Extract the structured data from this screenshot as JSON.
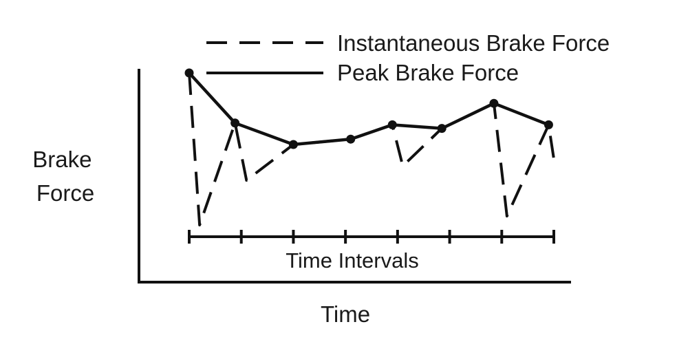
{
  "chart_data": {
    "type": "line",
    "title": "",
    "xlabel": "Time",
    "ylabel_lines": [
      "Brake",
      "Force"
    ],
    "interval_label": "Time Intervals",
    "interval_ticks": 8,
    "xlim": [
      0,
      7
    ],
    "ylim": [
      0,
      100
    ],
    "grid": false,
    "legend": {
      "placement": "top-right",
      "entries": [
        {
          "name": "Instantaneous Brake Force",
          "style": "dashed"
        },
        {
          "name": "Peak Brake Force",
          "style": "solid"
        }
      ]
    },
    "series": [
      {
        "name": "Peak Brake Force",
        "style": "solid",
        "markers": true,
        "x": [
          0,
          0.88,
          2.0,
          3.1,
          3.9,
          4.85,
          5.85,
          6.9
        ],
        "y": [
          90,
          62,
          50,
          53,
          61,
          59,
          73,
          61
        ]
      },
      {
        "name": "Instantaneous Brake Force",
        "style": "dashed",
        "markers": false,
        "x": [
          0,
          0.2,
          0.88,
          1.1,
          2.0,
          3.1,
          3.9,
          4.1,
          4.85,
          5.85,
          6.1,
          6.9,
          7.0
        ],
        "y": [
          90,
          5,
          62,
          30,
          50,
          53,
          61,
          38,
          59,
          73,
          10,
          61,
          42
        ]
      }
    ],
    "colors": {
      "line": "#111111",
      "text": "#1a1a1a",
      "background": "#ffffff"
    }
  }
}
